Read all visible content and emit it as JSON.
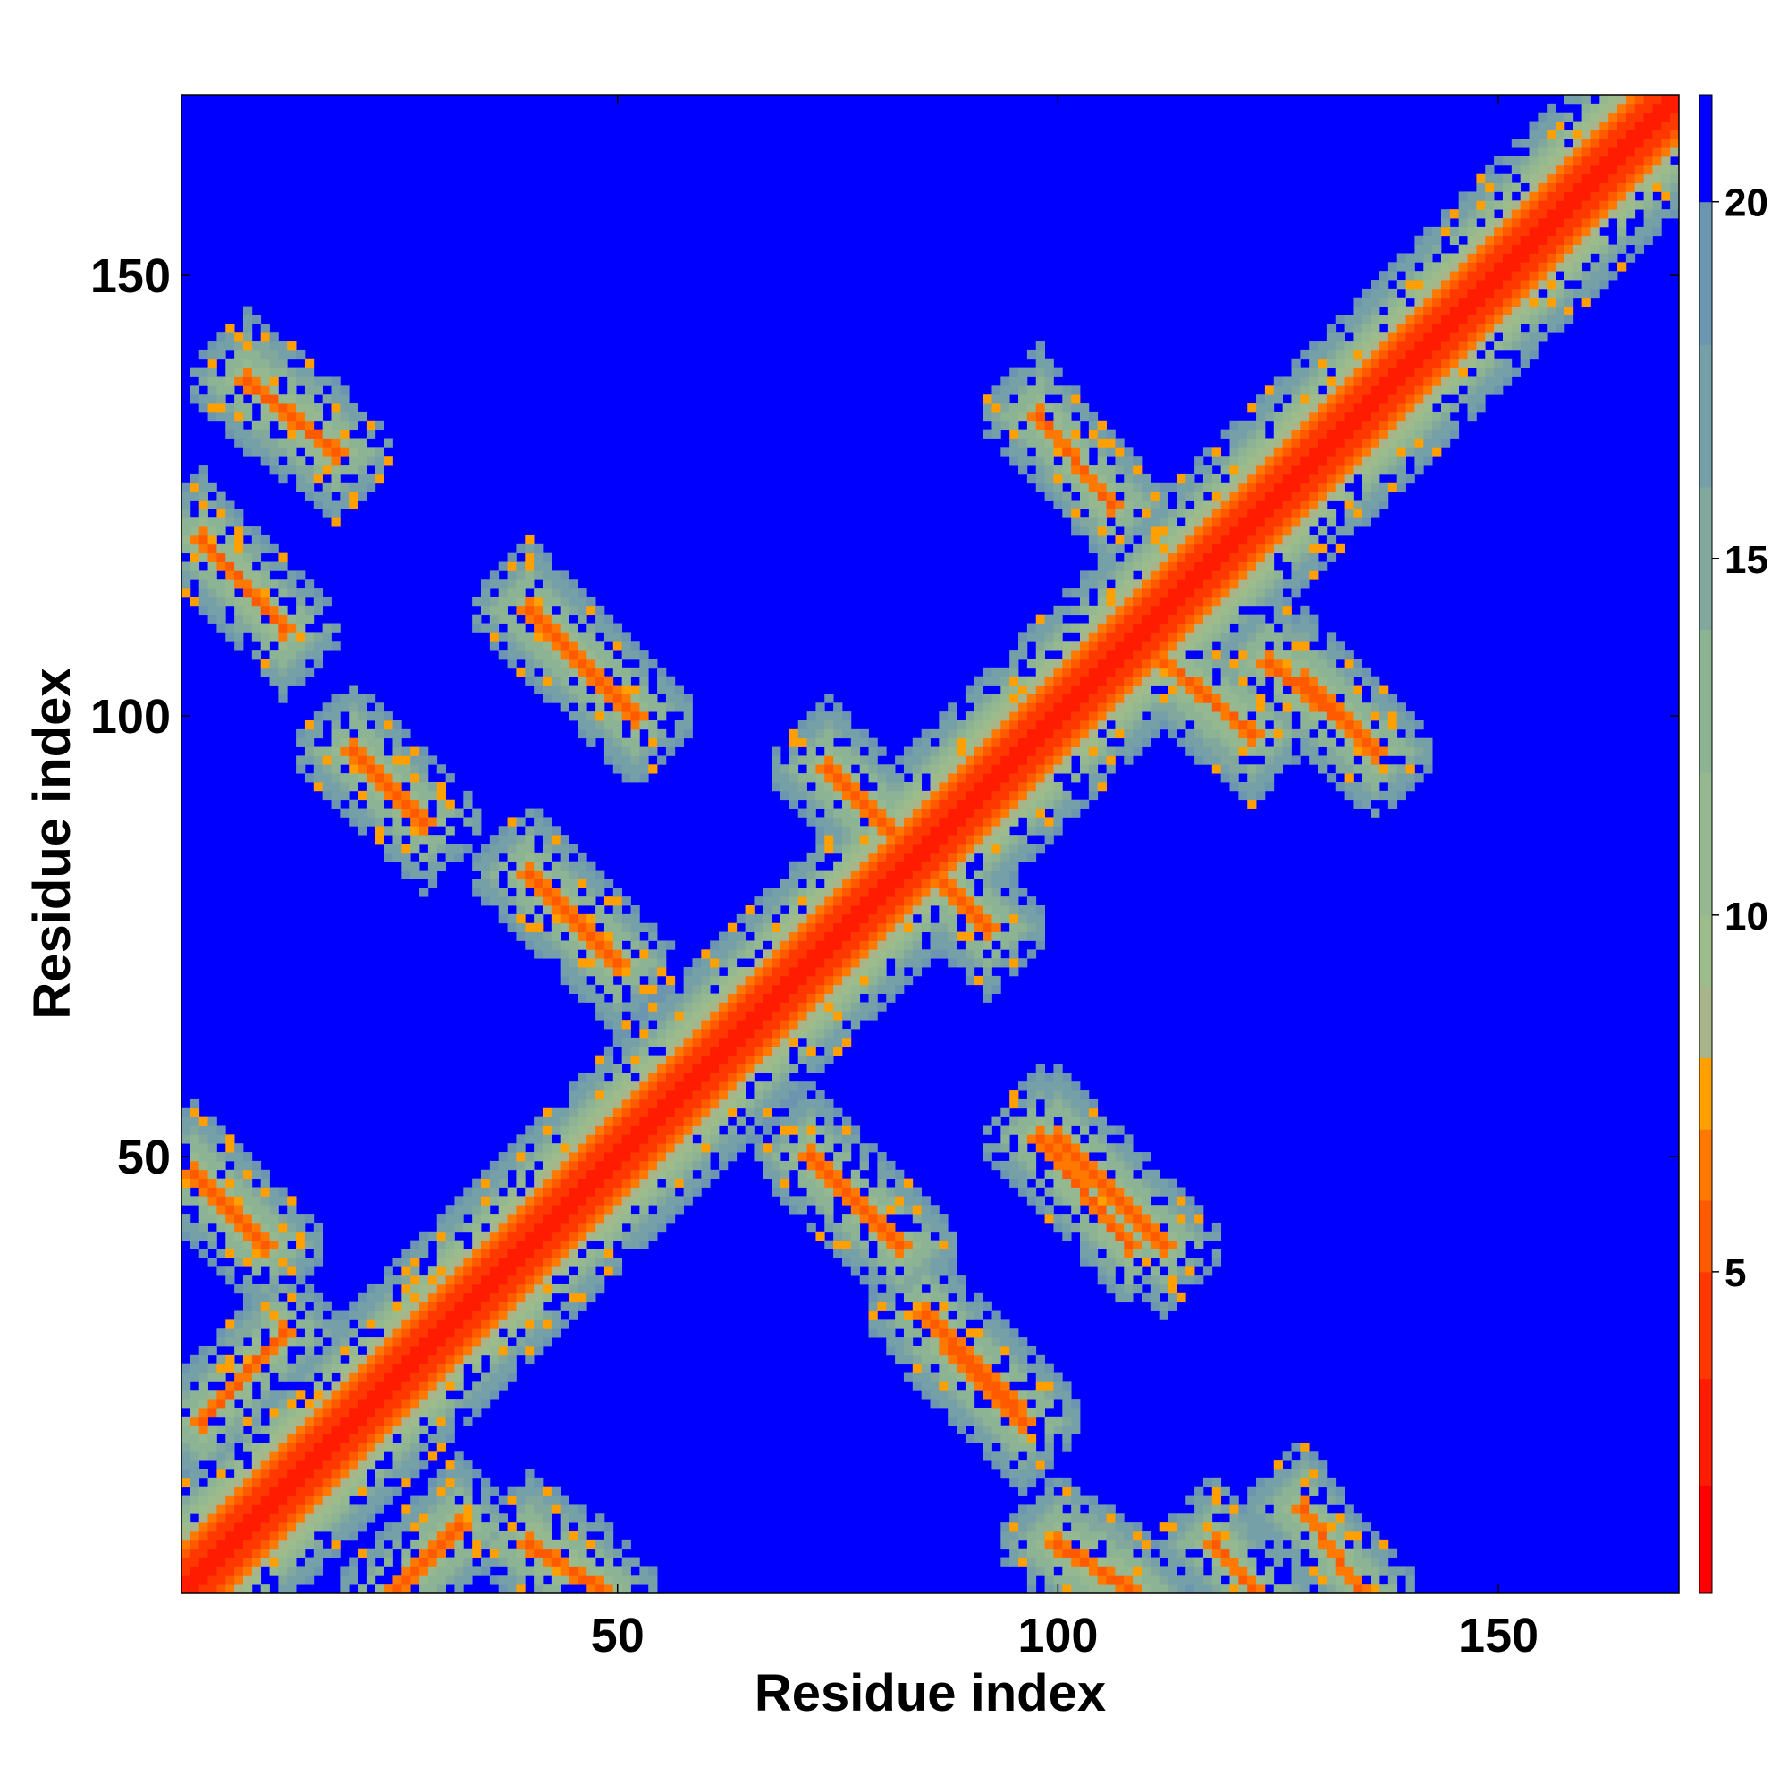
{
  "chart_data": {
    "type": "heatmap",
    "title": "",
    "xlabel": "Residue index",
    "ylabel": "Residue index",
    "xlim": [
      1,
      170
    ],
    "ylim": [
      1,
      170
    ],
    "x_ticks": [
      50,
      100,
      150
    ],
    "y_ticks": [
      50,
      100,
      150
    ],
    "colorbar": {
      "range": [
        0.5,
        21.5
      ],
      "ticks": [
        5,
        10,
        15,
        20
      ],
      "placement": "right",
      "bands": [
        {
          "from": 0.5,
          "to": 2,
          "color": "#ff0000"
        },
        {
          "from": 2,
          "to": 3.5,
          "color": "#ff1c00"
        },
        {
          "from": 3.5,
          "to": 5,
          "color": "#ff3800"
        },
        {
          "from": 5,
          "to": 6,
          "color": "#ff5a00"
        },
        {
          "from": 6,
          "to": 7,
          "color": "#ff7800"
        },
        {
          "from": 7,
          "to": 8,
          "color": "#ffa000"
        },
        {
          "from": 8,
          "to": 9,
          "color": "#a8b48a"
        },
        {
          "from": 9,
          "to": 10,
          "color": "#9cbc8c"
        },
        {
          "from": 10,
          "to": 12,
          "color": "#96b890"
        },
        {
          "from": 12,
          "to": 14,
          "color": "#8cb494"
        },
        {
          "from": 14,
          "to": 16,
          "color": "#82a89e"
        },
        {
          "from": 16,
          "to": 18,
          "color": "#76a0a8"
        },
        {
          "from": 18,
          "to": 20,
          "color": "#6c96b0"
        },
        {
          "from": 20,
          "to": 21.5,
          "color": "#0000ff"
        }
      ]
    },
    "background_value": 21,
    "diagonal_band": {
      "contact_halfwidth": 4,
      "near_halfwidth": 9
    },
    "contact_features": [
      {
        "kind": "antiparallel",
        "i": [
          2,
          10
        ],
        "j": [
          40,
          48
        ]
      },
      {
        "kind": "antiparallel",
        "i": [
          3,
          12
        ],
        "j": [
          110,
          120
        ]
      },
      {
        "kind": "antiparallel",
        "i": [
          8,
          18
        ],
        "j": [
          130,
          138
        ]
      },
      {
        "kind": "parallel",
        "i": [
          3,
          12
        ],
        "j": [
          20,
          30
        ]
      },
      {
        "kind": "parallel",
        "i": [
          25,
          32
        ],
        "j": [
          1,
          8
        ]
      },
      {
        "kind": "antiparallel",
        "i": [
          40,
          48
        ],
        "j": [
          1,
          6
        ]
      },
      {
        "kind": "antiparallel",
        "i": [
          20,
          28
        ],
        "j": [
          88,
          96
        ]
      },
      {
        "kind": "antiparallel",
        "i": [
          40,
          50
        ],
        "j": [
          72,
          82
        ]
      },
      {
        "kind": "antiparallel",
        "i": [
          40,
          52
        ],
        "j": [
          100,
          112
        ]
      },
      {
        "kind": "antiparallel",
        "i": [
          72,
          82
        ],
        "j": [
          40,
          50
        ]
      },
      {
        "kind": "antiparallel",
        "i": [
          88,
          96
        ],
        "j": [
          20,
          28
        ]
      },
      {
        "kind": "antiparallel",
        "i": [
          100,
          112
        ],
        "j": [
          40,
          52
        ]
      },
      {
        "kind": "antiparallel",
        "i": [
          85,
          95
        ],
        "j": [
          22,
          32
        ]
      },
      {
        "kind": "antiparallel",
        "i": [
          98,
          108
        ],
        "j": [
          40,
          52
        ]
      },
      {
        "kind": "antiparallel",
        "i": [
          98,
          106
        ],
        "j": [
          124,
          134
        ]
      },
      {
        "kind": "antiparallel",
        "i": [
          110,
          122
        ],
        "j": [
          98,
          108
        ]
      },
      {
        "kind": "antiparallel",
        "i": [
          124,
          134
        ],
        "j": [
          98,
          106
        ]
      },
      {
        "kind": "antiparallel",
        "i": [
          128,
          136
        ],
        "j": [
          96,
          104
        ]
      },
      {
        "kind": "antiparallel",
        "i": [
          128,
          134
        ],
        "j": [
          1,
          10
        ]
      },
      {
        "kind": "antiparallel",
        "i": [
          118,
          122
        ],
        "j": [
          1,
          6
        ]
      },
      {
        "kind": "antiparallel",
        "i": [
          100,
          108
        ],
        "j": [
          1,
          6
        ]
      },
      {
        "kind": "antiparallel",
        "i": [
          74,
          82
        ],
        "j": [
          86,
          94
        ]
      },
      {
        "kind": "antiparallel",
        "i": [
          84,
          92
        ],
        "j": [
          76,
          84
        ]
      }
    ]
  }
}
